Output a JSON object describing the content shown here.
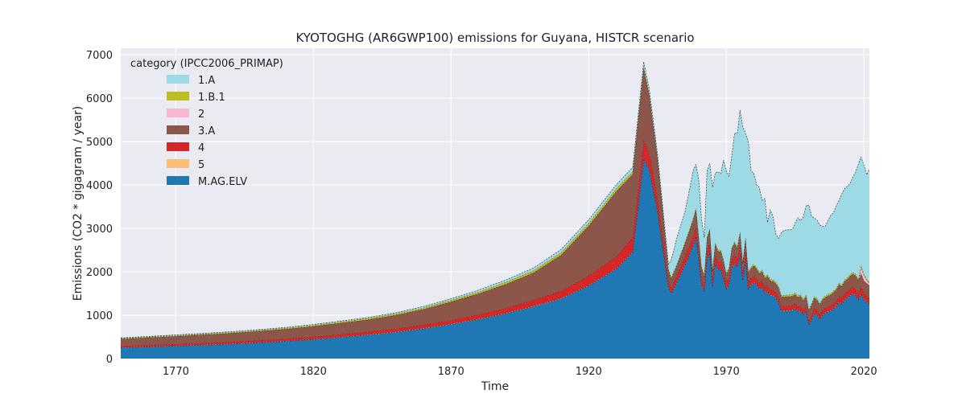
{
  "chart_data": {
    "type": "area",
    "stacked": true,
    "title": "KYOTOGHG (AR6GWP100) emissions for Guyana, HISTCR scenario",
    "xlabel": "Time",
    "ylabel": "Emissions (CO2 * gigagram / year)",
    "xlim": [
      1750,
      2022
    ],
    "ylim": [
      0,
      7150
    ],
    "xticks": [
      1770,
      1820,
      1870,
      1920,
      1970,
      2020
    ],
    "yticks": [
      0,
      1000,
      2000,
      3000,
      4000,
      5000,
      6000,
      7000
    ],
    "grid": true,
    "legend": {
      "title": "category (IPCC2006_PRIMAP)",
      "placement": "top-left"
    },
    "series_order_bottom_to_top": [
      "M.AG.ELV",
      "5",
      "4",
      "3.A",
      "2",
      "1.B.1",
      "1.A"
    ],
    "legend_order": [
      "1.A",
      "1.B.1",
      "2",
      "3.A",
      "4",
      "5",
      "M.AG.ELV"
    ],
    "x": [
      1750,
      1760,
      1770,
      1780,
      1790,
      1800,
      1810,
      1820,
      1830,
      1840,
      1850,
      1860,
      1870,
      1880,
      1890,
      1900,
      1910,
      1920,
      1930,
      1936,
      1940,
      1942,
      1945,
      1949,
      1950,
      1952,
      1955,
      1958,
      1959,
      1960,
      1961,
      1962,
      1963,
      1964,
      1965,
      1966,
      1967,
      1968,
      1969,
      1970,
      1971,
      1972,
      1973,
      1974,
      1975,
      1976,
      1977,
      1978,
      1979,
      1980,
      1981,
      1982,
      1983,
      1984,
      1985,
      1986,
      1987,
      1988,
      1989,
      1990,
      1991,
      1992,
      1993,
      1994,
      1995,
      1996,
      1997,
      1998,
      1999,
      2000,
      2001,
      2002,
      2003,
      2004,
      2005,
      2006,
      2007,
      2008,
      2009,
      2010,
      2011,
      2012,
      2013,
      2014,
      2015,
      2016,
      2017,
      2018,
      2019,
      2020,
      2021,
      2022
    ],
    "series": [
      {
        "name": "M.AG.ELV",
        "color": "#1f77b4",
        "values": [
          250,
          270,
          290,
          310,
          335,
          365,
          400,
          440,
          490,
          545,
          610,
          690,
          790,
          905,
          1040,
          1200,
          1380,
          1680,
          2060,
          2450,
          4600,
          4350,
          3400,
          1650,
          1500,
          1750,
          2150,
          2600,
          2800,
          2300,
          1700,
          1550,
          2300,
          2450,
          1650,
          2200,
          2050,
          2050,
          1850,
          1600,
          1700,
          2100,
          2200,
          2100,
          2400,
          1800,
          2300,
          1600,
          1700,
          1750,
          1700,
          1600,
          1650,
          1500,
          1550,
          1450,
          1450,
          1400,
          1300,
          1100,
          1100,
          1100,
          1100,
          1110,
          1150,
          1080,
          1100,
          1000,
          1100,
          780,
          900,
          1050,
          1000,
          900,
          1000,
          1050,
          1080,
          1100,
          1150,
          1200,
          1300,
          1250,
          1350,
          1400,
          1450,
          1500,
          1450,
          1350,
          1500,
          1350,
          1300,
          1250
        ]
      },
      {
        "name": "5",
        "color": "#ffbb78",
        "values": [
          5,
          5,
          5,
          5,
          5,
          5,
          5,
          5,
          6,
          6,
          6,
          6,
          6,
          6,
          6,
          7,
          7,
          7,
          7,
          7,
          8,
          8,
          8,
          8,
          8,
          8,
          8,
          8,
          8,
          8,
          8,
          8,
          8,
          8,
          8,
          8,
          8,
          8,
          8,
          8,
          8,
          8,
          8,
          8,
          8,
          8,
          8,
          8,
          8,
          8,
          8,
          8,
          8,
          8,
          8,
          8,
          8,
          8,
          8,
          8,
          8,
          8,
          8,
          8,
          8,
          8,
          8,
          8,
          8,
          8,
          8,
          8,
          8,
          8,
          8,
          8,
          8,
          8,
          8,
          8,
          8,
          8,
          8,
          8,
          8,
          8,
          8,
          8,
          8,
          8,
          8,
          8
        ]
      },
      {
        "name": "4",
        "color": "#d62728",
        "values": [
          35,
          38,
          40,
          43,
          46,
          50,
          54,
          58,
          63,
          68,
          74,
          82,
          92,
          105,
          120,
          140,
          170,
          220,
          280,
          340,
          420,
          400,
          300,
          150,
          130,
          150,
          180,
          210,
          220,
          180,
          150,
          140,
          190,
          200,
          150,
          180,
          170,
          170,
          160,
          150,
          150,
          180,
          190,
          180,
          200,
          160,
          190,
          150,
          150,
          150,
          140,
          140,
          140,
          130,
          130,
          130,
          120,
          120,
          120,
          110,
          110,
          110,
          110,
          110,
          110,
          110,
          110,
          100,
          110,
          90,
          100,
          110,
          110,
          100,
          110,
          110,
          110,
          110,
          110,
          120,
          130,
          130,
          140,
          140,
          150,
          150,
          150,
          140,
          150,
          140,
          130,
          130
        ]
      },
      {
        "name": "3.A",
        "color": "#8c564b",
        "values": [
          160,
          170,
          180,
          190,
          200,
          210,
          220,
          240,
          260,
          280,
          310,
          360,
          420,
          480,
          550,
          630,
          830,
          1150,
          1500,
          1450,
          1650,
          1300,
          900,
          230,
          200,
          230,
          310,
          380,
          400,
          300,
          230,
          200,
          280,
          300,
          200,
          250,
          240,
          240,
          220,
          180,
          200,
          240,
          260,
          250,
          280,
          230,
          260,
          210,
          220,
          230,
          220,
          210,
          210,
          210,
          210,
          200,
          200,
          200,
          200,
          200,
          200,
          210,
          210,
          210,
          210,
          210,
          220,
          220,
          220,
          220,
          230,
          230,
          230,
          230,
          240,
          240,
          250,
          250,
          260,
          260,
          270,
          270,
          280,
          280,
          290,
          290,
          300,
          300,
          300,
          300,
          300,
          300
        ]
      },
      {
        "name": "2",
        "color": "#f7b6d2",
        "values": [
          2,
          2,
          2,
          2,
          2,
          2,
          2,
          2,
          2,
          2,
          2,
          2,
          2,
          2,
          3,
          3,
          3,
          3,
          3,
          3,
          3,
          3,
          3,
          3,
          3,
          3,
          3,
          3,
          3,
          3,
          3,
          3,
          3,
          3,
          3,
          3,
          3,
          3,
          3,
          3,
          3,
          3,
          3,
          3,
          3,
          3,
          3,
          3,
          3,
          3,
          3,
          3,
          3,
          3,
          3,
          3,
          3,
          3,
          3,
          3,
          3,
          3,
          3,
          3,
          3,
          3,
          3,
          3,
          3,
          3,
          3,
          3,
          3,
          3,
          3,
          3,
          3,
          3,
          3,
          3,
          3,
          3,
          3,
          3,
          3,
          3,
          3,
          3,
          150,
          120,
          60,
          40
        ]
      },
      {
        "name": "1.B.1",
        "color": "#bcbd22",
        "values": [
          15,
          16,
          17,
          18,
          19,
          20,
          22,
          24,
          26,
          28,
          30,
          33,
          36,
          40,
          45,
          50,
          55,
          60,
          62,
          60,
          60,
          55,
          45,
          30,
          30,
          30,
          32,
          34,
          36,
          36,
          36,
          36,
          36,
          36,
          36,
          36,
          36,
          36,
          36,
          36,
          36,
          36,
          36,
          36,
          36,
          36,
          36,
          36,
          36,
          36,
          36,
          36,
          36,
          36,
          36,
          36,
          36,
          36,
          36,
          36,
          36,
          36,
          36,
          36,
          36,
          36,
          36,
          36,
          36,
          36,
          36,
          36,
          36,
          36,
          36,
          36,
          36,
          36,
          36,
          36,
          36,
          36,
          36,
          36,
          36,
          36,
          36,
          36,
          36,
          36,
          36,
          36
        ]
      },
      {
        "name": "1.A",
        "color": "#9edae5",
        "values": [
          10,
          11,
          12,
          13,
          14,
          15,
          16,
          18,
          20,
          22,
          25,
          30,
          35,
          42,
          50,
          60,
          70,
          80,
          90,
          100,
          100,
          100,
          80,
          100,
          400,
          600,
          700,
          1100,
          1000,
          1300,
          1100,
          850,
          1500,
          1500,
          1900,
          1600,
          1800,
          1750,
          2300,
          2350,
          2100,
          2100,
          2500,
          2600,
          2800,
          3100,
          2400,
          3000,
          2200,
          2100,
          1900,
          1950,
          1600,
          1800,
          1200,
          1600,
          1450,
          1100,
          1100,
          1450,
          1500,
          1500,
          1500,
          1500,
          1600,
          1800,
          1700,
          1900,
          2050,
          2400,
          2000,
          1800,
          1800,
          1800,
          1650,
          1600,
          1700,
          1800,
          1800,
          1900,
          1900,
          2100,
          2100,
          2100,
          2100,
          2200,
          2350,
          2650,
          2500,
          2500,
          2400,
          2600
        ]
      }
    ]
  }
}
